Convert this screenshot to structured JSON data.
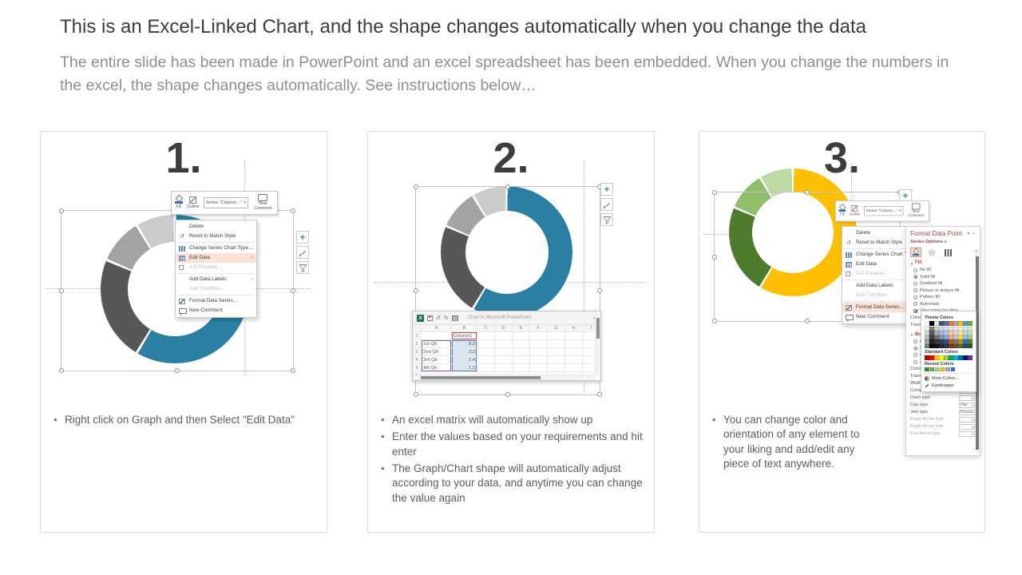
{
  "page": {
    "title": "This is an Excel-Linked Chart, and the shape changes automatically when you change the data",
    "subtitle": "The entire slide has been made in PowerPoint and an excel spreadsheet has been embedded. When you change the numbers in the excel, the shape changes automatically. See instructions below…"
  },
  "chart_data": {
    "type": "pie",
    "subtype": "doughnut",
    "series_name": "Column1",
    "categories": [
      "1st Qtr",
      "2nd Qtr",
      "3rd Qtr",
      "4th Qtr"
    ],
    "values": [
      8.2,
      3.2,
      1.4,
      1.2
    ],
    "palette_blue_gray": [
      "#2b7fa2",
      "#575757",
      "#a3a3a3",
      "#cbcbcb"
    ],
    "palette_green_yellow": [
      "#fdbf00",
      "#4e7c2f",
      "#90bf6b",
      "#bedaa4"
    ]
  },
  "steps": [
    {
      "number": "1.",
      "bullets": [
        "Right click on Graph and then Select \"Edit Data\""
      ]
    },
    {
      "number": "2.",
      "bullets": [
        "An excel matrix will automatically show up",
        "Enter the values based on your requirements and hit enter",
        "The Graph/Chart shape will automatically adjust according to your data, and anytime you can change the value again"
      ]
    },
    {
      "number": "3.",
      "bullets": [
        "You can change color and orientation of any element to your liking and add/edit any piece of text anywhere."
      ]
    }
  ],
  "mini_toolbar": {
    "fill": "Fill",
    "outline": "Outline",
    "series_dropdown": "Series \"Column…\"",
    "new_comment": "New Comment"
  },
  "context_menu": {
    "items": [
      {
        "label": "Delete"
      },
      {
        "label": "Reset to Match Style"
      },
      {
        "label": "Change Series Chart Type…"
      },
      {
        "label": "Edit Data"
      },
      {
        "label": "3-D Rotation…"
      },
      {
        "label": "Add Data Labels"
      },
      {
        "label": "Add Trendline…"
      },
      {
        "label": "Format Data Series…"
      },
      {
        "label": "New Comment"
      }
    ],
    "step1_highlight": "Edit Data",
    "step3_highlight": "Format Data Series…"
  },
  "excel_window": {
    "title": "Chart in Microsoft PowerPoint",
    "logo_letter": "X",
    "columns": [
      "A",
      "B",
      "C",
      "D",
      "E",
      "F",
      "G",
      "H",
      "I"
    ],
    "rows": [
      {
        "num": "1",
        "a": "",
        "b": "Column1"
      },
      {
        "num": "2",
        "a": "1st Qtr",
        "b": "8.2"
      },
      {
        "num": "3",
        "a": "2nd Qtr",
        "b": "3.2"
      },
      {
        "num": "4",
        "a": "3rd Qtr",
        "b": "1.4"
      },
      {
        "num": "5",
        "a": "4th Qtr",
        "b": "1.2"
      },
      {
        "num": "6",
        "a": "",
        "b": ""
      }
    ]
  },
  "format_pane": {
    "title": "Format Data Point",
    "series_options": "Series Options",
    "fill_header": "Fill",
    "fill_options": [
      "No fill",
      "Solid fill",
      "Gradient fill",
      "Picture or texture fill",
      "Pattern fill",
      "Automatic"
    ],
    "selected_fill": "Solid fill",
    "vary_colors": "Vary colors by slice",
    "color_label": "Color",
    "transparency_label": "Transparency",
    "border_header": "Border",
    "border_options": [
      "No line",
      "Solid line",
      "Gradient line",
      "Automatic"
    ],
    "props": [
      {
        "label": "Color",
        "value": ""
      },
      {
        "label": "Transparency",
        "value": ""
      },
      {
        "label": "Width",
        "value": ""
      },
      {
        "label": "Compound type",
        "value": ""
      },
      {
        "label": "Dash type",
        "value": ""
      },
      {
        "label": "Cap type",
        "value": "Flat"
      },
      {
        "label": "Join type",
        "value": "Round"
      },
      {
        "label": "Begin Arrow type",
        "value": ""
      },
      {
        "label": "Begin Arrow size",
        "value": ""
      },
      {
        "label": "End Arrow type",
        "value": ""
      }
    ]
  },
  "color_popup": {
    "theme_label": "Theme Colors",
    "standard_label": "Standard Colors",
    "recent_label": "Recent Colors",
    "more_colors": "More Colors…",
    "eyedropper": "Eyedropper",
    "theme_row": [
      "#ffffff",
      "#000000",
      "#e7e6e6",
      "#44546a",
      "#4472c4",
      "#ed7d31",
      "#a5a5a5",
      "#ffc000",
      "#5b9bd5",
      "#70ad47"
    ],
    "theme_shades": [
      [
        "#f2f2f2",
        "#7f7f7f",
        "#d0cece",
        "#d6dce4",
        "#d9e2f3",
        "#fbe4d5",
        "#ededed",
        "#fff2cc",
        "#deeaf6",
        "#e2efd9"
      ],
      [
        "#d8d8d8",
        "#595959",
        "#aeaaaa",
        "#acb9ca",
        "#b4c6e7",
        "#f7caac",
        "#dbdbdb",
        "#ffe599",
        "#bdd6ee",
        "#c5e0b3"
      ],
      [
        "#bfbfbf",
        "#404040",
        "#757171",
        "#8496b0",
        "#8eaadb",
        "#f4b083",
        "#c9c9c9",
        "#ffd966",
        "#9cc3e5",
        "#a8d08d"
      ],
      [
        "#a5a5a5",
        "#262626",
        "#3a3838",
        "#333f4f",
        "#2f5496",
        "#c45911",
        "#7b7b7b",
        "#bf9000",
        "#2e74b5",
        "#538135"
      ],
      [
        "#7f7f7f",
        "#0d0d0d",
        "#161616",
        "#222b35",
        "#1f3864",
        "#833c00",
        "#525252",
        "#7f6000",
        "#1f4e79",
        "#375623"
      ]
    ],
    "standard_row": [
      "#c00000",
      "#ff0000",
      "#ffc000",
      "#ffff00",
      "#92d050",
      "#00b050",
      "#00b0f0",
      "#0070c0",
      "#002060",
      "#7030a0"
    ],
    "recent_row": [
      "#538135",
      "#70ad47",
      "#a9d18e",
      "#ffc000",
      "#8eaadb",
      "#4472c4"
    ]
  },
  "icons": {
    "plus": "+",
    "close_x": "×",
    "chevron_down": "▾",
    "submenu_arrow": "›",
    "reset": "↺",
    "undo": "↺",
    "redo": "↻",
    "collapse_tri": "▲"
  }
}
